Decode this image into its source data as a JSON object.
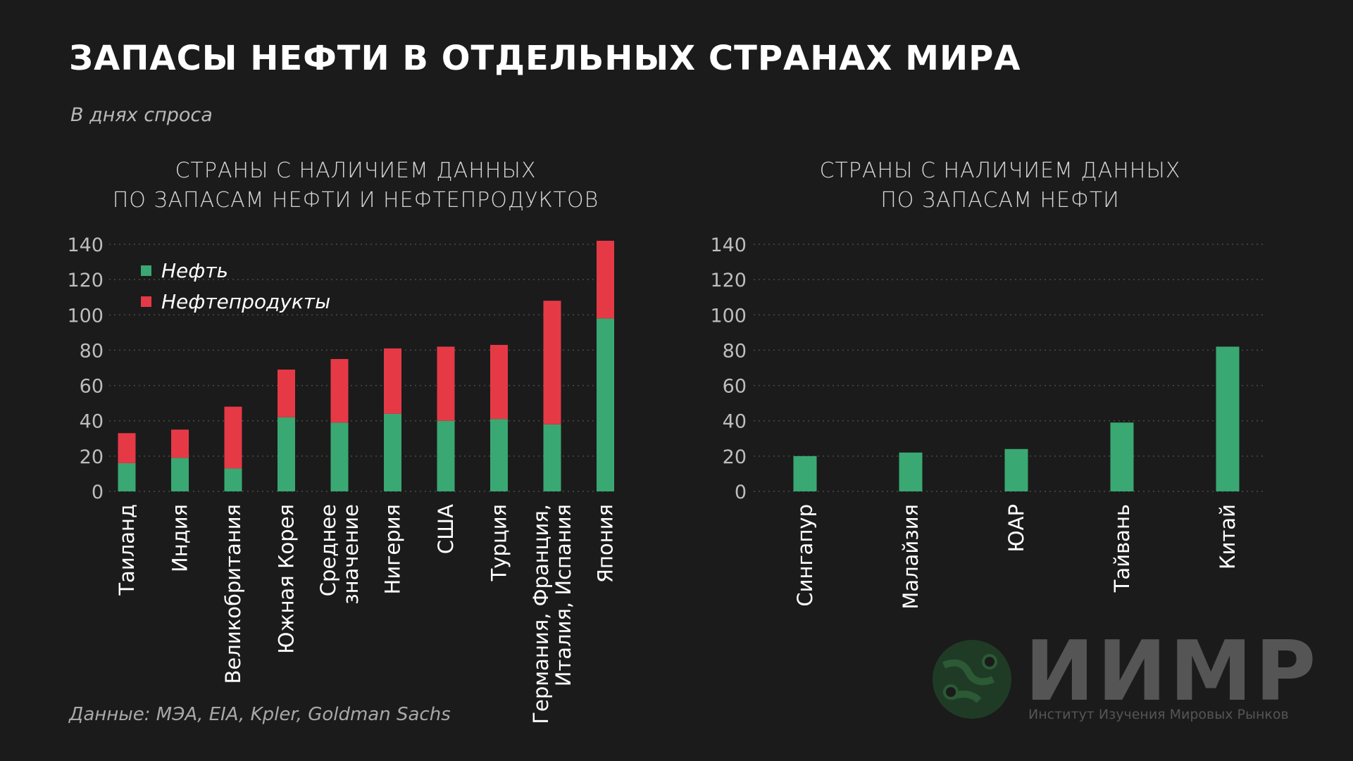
{
  "title": "Запасы нефти в отдельных странах мира",
  "subtitle": "В днях спроса",
  "source": "Данные: МЭА, EIA, Kpler, Goldman Sachs",
  "logo": {
    "name": "ИИМР",
    "tagline": "Институт Изучения Мировых Рынков"
  },
  "colors": {
    "oil": "#3aa872",
    "products": "#e63946",
    "grid": "#4a4a4a",
    "tick": "#bdbdbd"
  },
  "chart_data": [
    {
      "type": "bar",
      "stacked": true,
      "title_lines": [
        "Страны с наличием данных",
        "по запасам нефти и нефтепродуктов"
      ],
      "categories": [
        [
          "Таиланд"
        ],
        [
          "Индия"
        ],
        [
          "Великобритания"
        ],
        [
          "Южная Корея"
        ],
        [
          "Среднее",
          "значение"
        ],
        [
          "Нигерия"
        ],
        [
          "США"
        ],
        [
          "Турция"
        ],
        [
          "Германия, Франция,",
          "Италия, Испания"
        ],
        [
          "Япония"
        ]
      ],
      "series": [
        {
          "name": "Нефть",
          "color": "#3aa872",
          "values": [
            16,
            19,
            13,
            42,
            39,
            44,
            40,
            41,
            38,
            98
          ]
        },
        {
          "name": "Нефтепродукты",
          "color": "#e63946",
          "values": [
            17,
            16,
            35,
            27,
            36,
            37,
            42,
            42,
            70,
            44
          ]
        }
      ],
      "ylim": [
        0,
        140
      ],
      "yticks": [
        "0",
        "20",
        "40",
        "60",
        "80",
        "100",
        "120",
        "140"
      ],
      "grid": true,
      "legend": "top-left"
    },
    {
      "type": "bar",
      "title_lines": [
        "Страны с наличием данных",
        "по запасам нефти"
      ],
      "categories": [
        [
          "Сингапур"
        ],
        [
          "Малайзия"
        ],
        [
          "ЮАР"
        ],
        [
          "Тайвань"
        ],
        [
          "Китай"
        ]
      ],
      "series": [
        {
          "name": "Нефть",
          "color": "#3aa872",
          "values": [
            20,
            22,
            24,
            39,
            82
          ]
        }
      ],
      "ylim": [
        0,
        140
      ],
      "yticks": [
        "0",
        "20",
        "40",
        "60",
        "80",
        "100",
        "120",
        "140"
      ],
      "grid": true
    }
  ]
}
